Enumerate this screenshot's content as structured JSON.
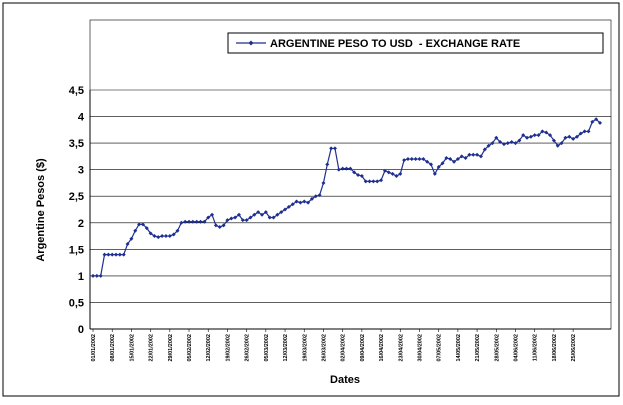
{
  "chart_data": {
    "type": "line",
    "y_label": "Argentine Pesos ($)",
    "x_label": "Dates",
    "ylim": [
      0,
      4.5
    ],
    "yticks": [
      0,
      {
        "value": 0.5,
        "label": "0,5"
      },
      1,
      {
        "value": 1.5,
        "label": "1,5"
      },
      2,
      {
        "value": 2.5,
        "label": "2,5"
      },
      3,
      {
        "value": 3.5,
        "label": "3,5"
      },
      4,
      {
        "value": 4.5,
        "label": "4,5"
      }
    ],
    "grid": true,
    "legend": "top-right",
    "categories": [
      "01/01/2002",
      null,
      null,
      null,
      null,
      "08/01/2002",
      null,
      null,
      null,
      null,
      "15/01/2002",
      null,
      null,
      null,
      null,
      "22/01/2002",
      null,
      null,
      null,
      null,
      "29/01/2002",
      null,
      null,
      null,
      null,
      "05/02/2002",
      null,
      null,
      null,
      null,
      "12/02/2002",
      null,
      null,
      null,
      null,
      "19/02/2002",
      null,
      null,
      null,
      null,
      "26/02/2002",
      null,
      null,
      null,
      null,
      "05/03/2002",
      null,
      null,
      null,
      null,
      "12/03/2002",
      null,
      null,
      null,
      null,
      "19/03/2002",
      null,
      null,
      null,
      null,
      "26/03/2002",
      null,
      null,
      null,
      null,
      "02/04/2002",
      null,
      null,
      null,
      null,
      "09/04/2002",
      null,
      null,
      null,
      null,
      "16/04/2002",
      null,
      null,
      null,
      null,
      "23/04/2002",
      null,
      null,
      null,
      null,
      "30/04/2002",
      null,
      null,
      null,
      null,
      "07/05/2002",
      null,
      null,
      null,
      null,
      "14/05/2002",
      null,
      null,
      null,
      null,
      "21/05/2002",
      null,
      null,
      null,
      null,
      "28/05/2002",
      null,
      null,
      null,
      null,
      "04/06/2002",
      null,
      null,
      null,
      null,
      "11/06/2002",
      null,
      null,
      null,
      null,
      "18/06/2002",
      null,
      null,
      null,
      null,
      "25/06/2002",
      null,
      null,
      null,
      null,
      null,
      null,
      null
    ],
    "series": [
      {
        "name": "ARGENTINE PESO TO USD  - EXCHANGE RATE",
        "color": "#1f2f8f",
        "values": [
          1,
          1,
          1,
          1.4,
          1.4,
          1.4,
          1.4,
          1.4,
          1.4,
          1.6,
          1.7,
          1.85,
          1.97,
          1.97,
          1.9,
          1.8,
          1.75,
          1.73,
          1.75,
          1.75,
          1.75,
          1.78,
          1.85,
          2,
          2.02,
          2.02,
          2.02,
          2.02,
          2.02,
          2.02,
          2.1,
          2.15,
          1.95,
          1.92,
          1.95,
          2.05,
          2.08,
          2.1,
          2.15,
          2.05,
          2.05,
          2.1,
          2.15,
          2.2,
          2.15,
          2.2,
          2.1,
          2.1,
          2.15,
          2.2,
          2.25,
          2.3,
          2.35,
          2.4,
          2.38,
          2.4,
          2.38,
          2.45,
          2.5,
          2.52,
          2.75,
          3.1,
          3.4,
          3.4,
          3,
          3.02,
          3.02,
          3.02,
          2.95,
          2.9,
          2.88,
          2.78,
          2.78,
          2.78,
          2.78,
          2.8,
          2.98,
          2.95,
          2.92,
          2.88,
          2.92,
          3.18,
          3.2,
          3.2,
          3.2,
          3.2,
          3.2,
          3.15,
          3.1,
          2.92,
          3.05,
          3.12,
          3.22,
          3.2,
          3.15,
          3.2,
          3.25,
          3.22,
          3.28,
          3.28,
          3.28,
          3.25,
          3.38,
          3.45,
          3.5,
          3.6,
          3.52,
          3.48,
          3.5,
          3.52,
          3.5,
          3.55,
          3.65,
          3.6,
          3.62,
          3.65,
          3.65,
          3.72,
          3.7,
          3.65,
          3.55,
          3.45,
          3.5,
          3.6,
          3.62,
          3.58,
          3.62,
          3.68,
          3.72,
          3.72,
          3.9,
          3.95,
          3.88
        ]
      }
    ]
  }
}
